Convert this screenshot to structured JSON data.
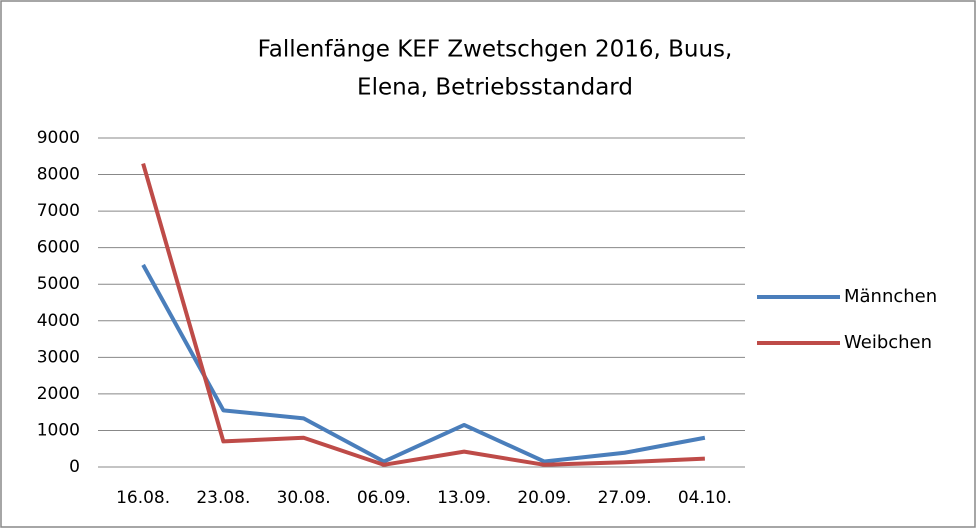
{
  "chart_data": {
    "type": "line",
    "title": [
      "Fallenfänge KEF Zwetschgen 2016, Buus,",
      "Elena,  Betriebsstandard"
    ],
    "categories": [
      "16.08.",
      "23.08.",
      "30.08.",
      "06.09.",
      "13.09.",
      "20.09.",
      "27.09.",
      "04.10."
    ],
    "series": [
      {
        "name": "Männchen",
        "color": "#4a7ebb",
        "values": [
          5530,
          1550,
          1330,
          150,
          1150,
          150,
          390,
          800
        ]
      },
      {
        "name": "Weibchen",
        "color": "#be4b48",
        "values": [
          8300,
          700,
          800,
          60,
          420,
          60,
          130,
          230
        ]
      }
    ],
    "ylim": [
      0,
      9000
    ],
    "yticks": [
      0,
      1000,
      2000,
      3000,
      4000,
      5000,
      6000,
      7000,
      8000,
      9000
    ],
    "grid": true,
    "legend": "right"
  }
}
